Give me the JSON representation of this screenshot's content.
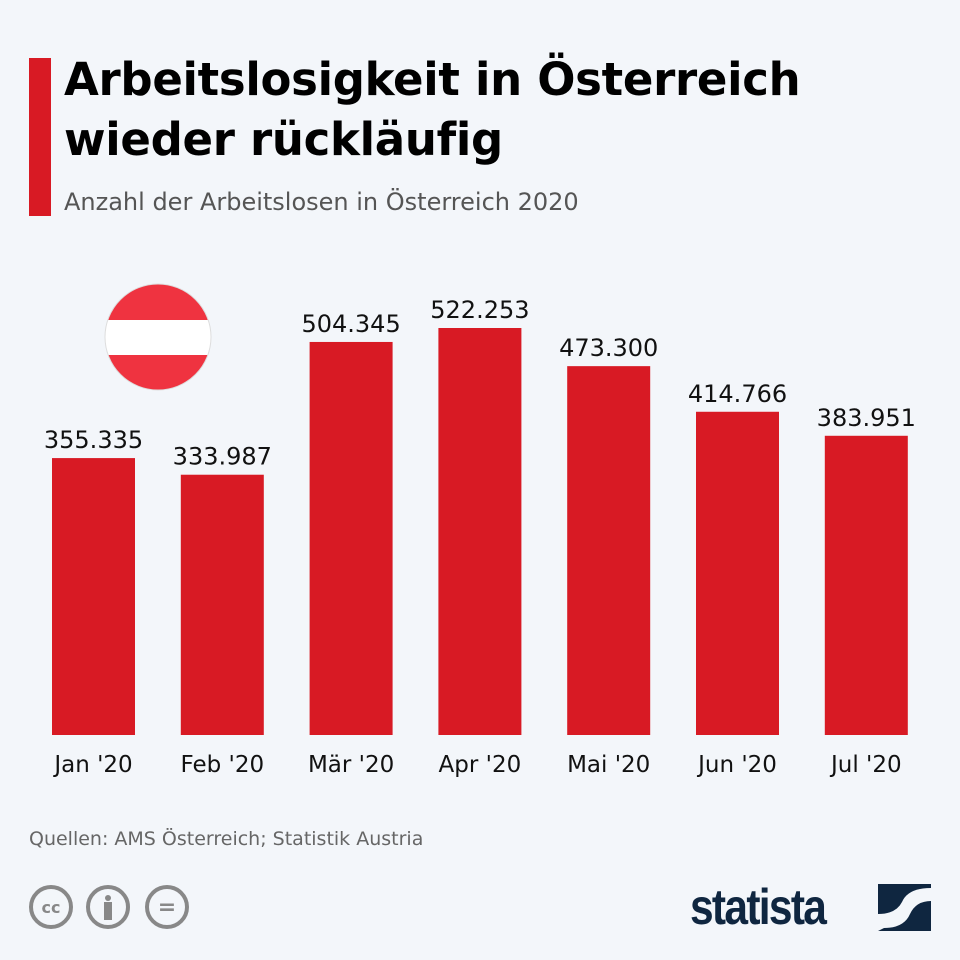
{
  "header": {
    "title_line1": "Arbeitslosigkeit in Österreich",
    "title_line2": "wieder rückläufig",
    "subtitle": "Anzahl der Arbeitslosen in Österreich 2020"
  },
  "chart_data": {
    "type": "bar",
    "categories": [
      "Jan '20",
      "Feb '20",
      "Mär '20",
      "Apr '20",
      "Mai '20",
      "Jun '20",
      "Jul '20"
    ],
    "values": [
      355335,
      333987,
      504345,
      522253,
      473300,
      414766,
      383951
    ],
    "labels": [
      "355.335",
      "333.987",
      "504.345",
      "522.253",
      "473.300",
      "414.766",
      "383.951"
    ],
    "ylim": [
      0,
      522253
    ],
    "grid": false,
    "bar_color": "#d81a24"
  },
  "flag": {
    "icon": "austria-flag-icon",
    "colors": [
      "#ef3340",
      "#ffffff"
    ]
  },
  "footer": {
    "source": "Quellen: AMS Österreich; Statistik Austria",
    "cc_label": "cc",
    "nd_label": "=",
    "logo": "statista"
  }
}
